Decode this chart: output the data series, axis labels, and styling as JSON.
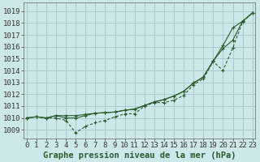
{
  "ylabel_ticks": [
    1009,
    1010,
    1011,
    1012,
    1013,
    1014,
    1015,
    1016,
    1017,
    1018,
    1019
  ],
  "xlim": [
    -0.3,
    23.3
  ],
  "ylim": [
    1008.3,
    1019.7
  ],
  "bg_color": "#cce8e8",
  "grid_color": "#aacccc",
  "line_color": "#2d5a2d",
  "line1": [
    1010.0,
    1010.1,
    1010.0,
    1010.0,
    1009.8,
    1008.75,
    1009.3,
    1009.6,
    1009.8,
    1010.1,
    1010.35,
    1010.35,
    1011.0,
    1011.3,
    1011.3,
    1011.5,
    1011.9,
    1012.8,
    1013.3,
    1014.75,
    1014.0,
    1015.9,
    1018.1,
    1018.85
  ],
  "line2": [
    1010.0,
    1010.1,
    1010.0,
    1010.2,
    1010.2,
    1010.2,
    1010.3,
    1010.4,
    1010.45,
    1010.5,
    1010.65,
    1010.75,
    1011.05,
    1011.35,
    1011.55,
    1011.85,
    1012.25,
    1012.95,
    1013.45,
    1014.8,
    1015.85,
    1016.55,
    1018.15,
    1018.85
  ],
  "line3": [
    1010.0,
    1010.1,
    1010.0,
    1010.2,
    1010.0,
    1010.0,
    1010.2,
    1010.4,
    1010.45,
    1010.5,
    1010.65,
    1010.75,
    1011.05,
    1011.35,
    1011.55,
    1011.85,
    1012.25,
    1012.95,
    1013.45,
    1014.8,
    1016.1,
    1017.6,
    1018.15,
    1018.85
  ],
  "xlabel": "Graphe pression niveau de la mer (hPa)",
  "tick_fontsize": 6.5,
  "label_fontsize": 7.5
}
